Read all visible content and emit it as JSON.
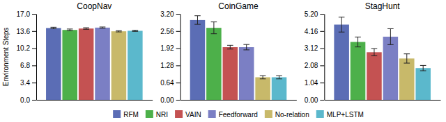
{
  "chart_data": [
    {
      "type": "bar",
      "title": "CoopNav",
      "ylabel": "Environment Steps",
      "categories": [
        "RFM",
        "NRI",
        "VAIN",
        "Feedforward",
        "No-relation",
        "MLP+LSTM"
      ],
      "values": [
        14.2,
        13.82,
        14.1,
        14.28,
        13.55,
        13.65
      ],
      "errors": [
        0.15,
        0.18,
        0.15,
        0.12,
        0.12,
        0.12
      ],
      "colors": [
        "#5b6db5",
        "#4db04a",
        "#c45252",
        "#7b7fc4",
        "#c8b96a",
        "#5bb8cc"
      ],
      "ylim": [
        0.0,
        17.0
      ],
      "yticks": [
        {
          "value": 0,
          "label": "0.0"
        },
        3.4,
        6.8,
        10.2,
        13.6,
        {
          "value": 17,
          "label": "17.0"
        }
      ],
      "tick_labels": "y",
      "legend": "bottom"
    },
    {
      "type": "bar",
      "title": "CoinGame",
      "categories": [
        "RFM",
        "NRI",
        "VAIN",
        "Feedforward",
        "No-relation",
        "MLP+LSTM"
      ],
      "values": [
        2.97,
        2.68,
        1.96,
        1.96,
        0.84,
        0.84
      ],
      "errors": [
        0.16,
        0.22,
        0.07,
        0.1,
        0.06,
        0.06
      ],
      "colors": [
        "#5b6db5",
        "#4db04a",
        "#c45252",
        "#7b7fc4",
        "#c8b96a",
        "#5bb8cc"
      ],
      "ylim": [
        0.0,
        3.2
      ],
      "yticks": [
        {
          "value": 0,
          "label": "0.00"
        },
        0.64,
        1.28,
        1.92,
        2.56,
        {
          "value": 3.2,
          "label": "3.20"
        }
      ],
      "tick_labels": "y"
    },
    {
      "type": "bar",
      "title": "StagHunt",
      "categories": [
        "RFM",
        "NRI",
        "VAIN",
        "Feedforward",
        "No-relation",
        "MLP+LSTM"
      ],
      "values": [
        4.55,
        3.5,
        2.88,
        3.82,
        2.5,
        1.92
      ],
      "errors": [
        0.45,
        0.3,
        0.22,
        0.48,
        0.28,
        0.16
      ],
      "colors": [
        "#5b6db5",
        "#4db04a",
        "#c45252",
        "#7b7fc4",
        "#c8b96a",
        "#5bb8cc"
      ],
      "ylim": [
        0.0,
        5.2
      ],
      "yticks": [
        {
          "value": 0,
          "label": "0.00"
        },
        1.04,
        2.08,
        3.12,
        4.16,
        {
          "value": 5.2,
          "label": "5.20"
        }
      ],
      "tick_labels": "y"
    }
  ]
}
